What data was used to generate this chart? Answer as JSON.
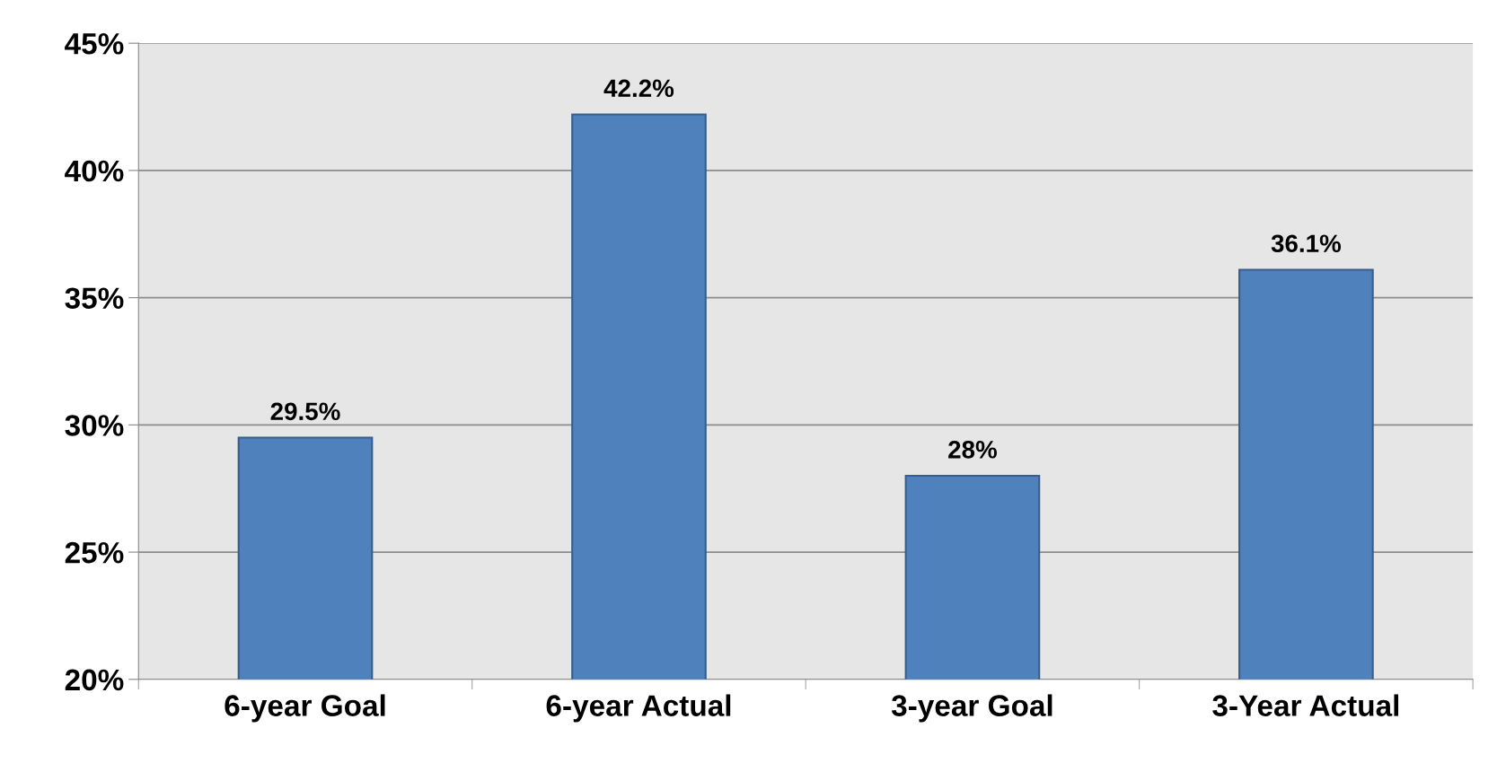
{
  "chart_data": {
    "type": "bar",
    "categories": [
      "6-year Goal",
      "6-year Actual",
      "3-year Goal",
      "3-Year Actual"
    ],
    "values": [
      29.5,
      42.2,
      28,
      36.1
    ],
    "value_labels": [
      "29.5%",
      "42.2%",
      "28%",
      "36.1%"
    ],
    "color": "#4f81bd",
    "ylim": [
      20,
      45
    ],
    "yticks": [
      {
        "value": 20,
        "label": "20%"
      },
      {
        "value": 25,
        "label": "25%"
      },
      {
        "value": 30,
        "label": "30%"
      },
      {
        "value": 35,
        "label": "35%"
      },
      {
        "value": 40,
        "label": "40%"
      },
      {
        "value": 45,
        "label": "45%"
      }
    ],
    "grid": "y",
    "legend": false
  }
}
